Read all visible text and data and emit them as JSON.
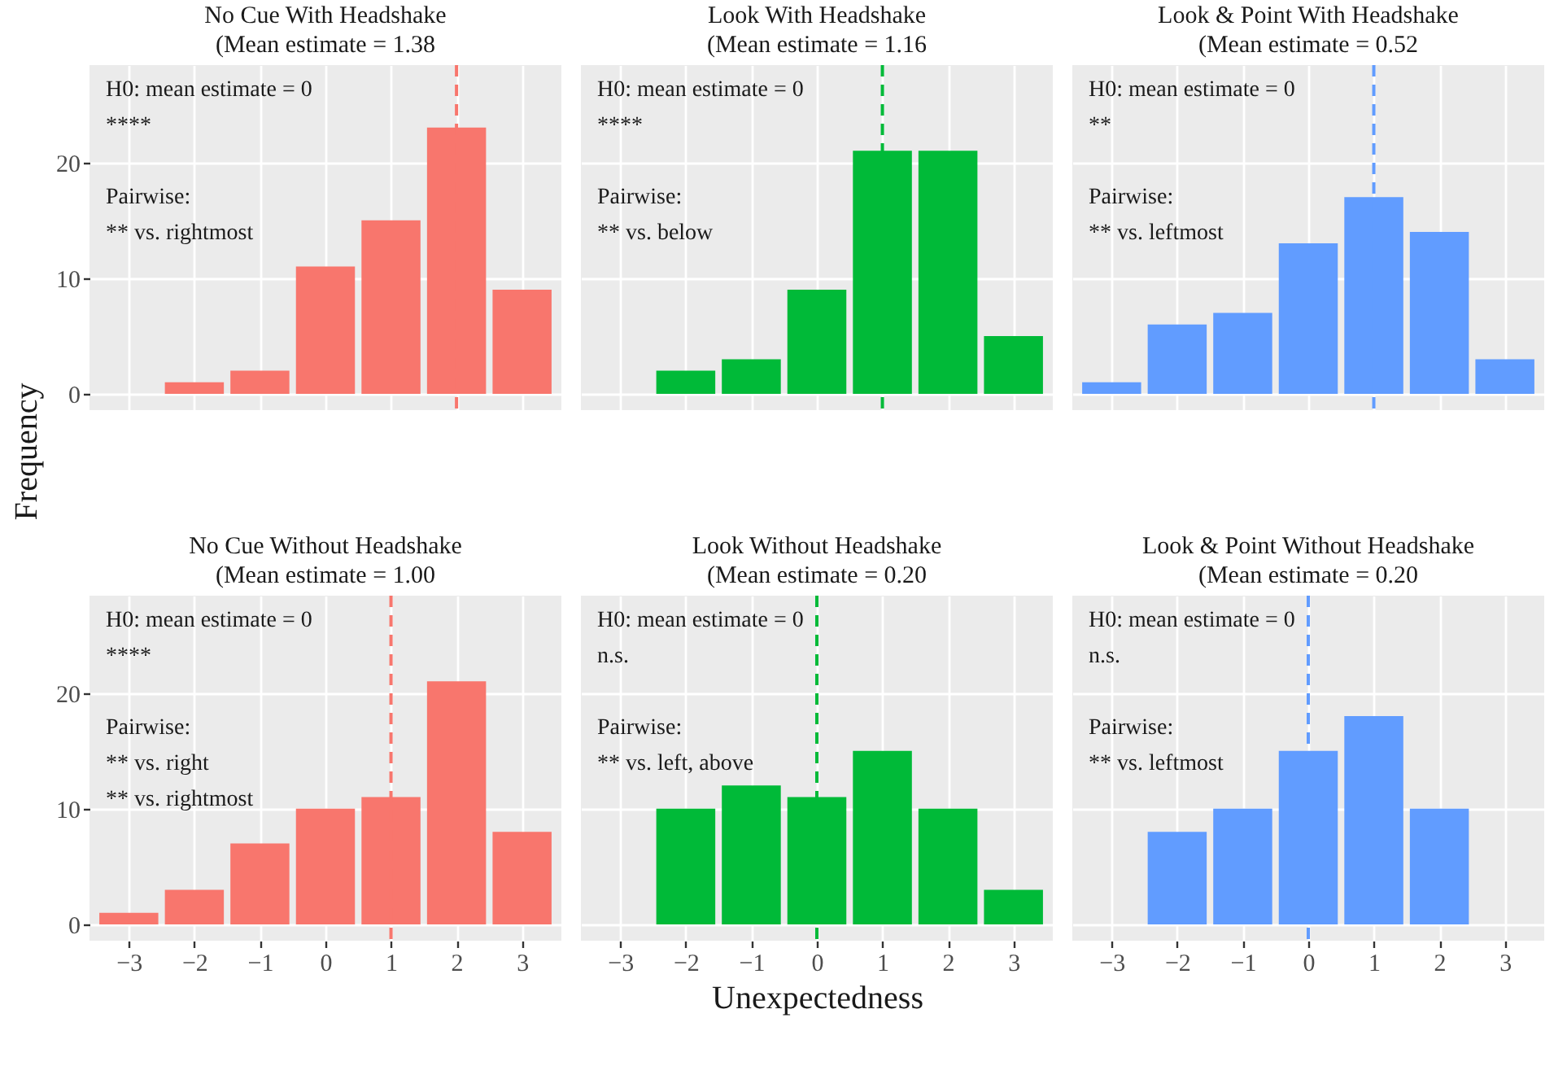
{
  "chart_data": [
    {
      "type": "bar",
      "title": "No Cue With Headshake\n(Mean estimate =  1.38",
      "x": [
        -3,
        -2,
        -1,
        0,
        1,
        2,
        3
      ],
      "values": [
        0,
        1,
        2,
        11,
        15,
        23,
        9
      ],
      "color": "#f8766d",
      "xlim": [
        -3.6,
        3.6
      ],
      "ylim": [
        -1.4,
        28.4
      ],
      "xticks": [
        -3,
        -2,
        -1,
        0,
        1,
        2,
        3
      ],
      "yticks": [
        0,
        10,
        20
      ],
      "grid": true,
      "tick_labels": "y",
      "ylabel": "Frequency",
      "annotations": [
        "H0: mean estimate = 0",
        "****",
        "Pairwise:",
        "** vs. rightmost"
      ],
      "ref_lines": [
        {
          "axis": "x",
          "value": 2,
          "color": "#f8766d",
          "line_style": "dashed"
        }
      ]
    },
    {
      "type": "bar",
      "title": "Look With Headshake\n(Mean estimate =  1.16",
      "x": [
        -3,
        -2,
        -1,
        0,
        1,
        2,
        3
      ],
      "values": [
        0,
        2,
        3,
        9,
        21,
        21,
        5
      ],
      "color": "#00ba38",
      "xlim": [
        -3.6,
        3.6
      ],
      "ylim": [
        -1.4,
        28.4
      ],
      "xticks": [
        -3,
        -2,
        -1,
        0,
        1,
        2,
        3
      ],
      "yticks": [
        0,
        10,
        20
      ],
      "grid": true,
      "tick_labels": false,
      "annotations": [
        "H0: mean estimate = 0",
        "****",
        "Pairwise:",
        "** vs. below"
      ],
      "ref_lines": [
        {
          "axis": "x",
          "value": 1,
          "color": "#00ba38",
          "line_style": "dashed"
        }
      ]
    },
    {
      "type": "bar",
      "title": "Look & Point With Headshake\n(Mean estimate =  0.52",
      "x": [
        -3,
        -2,
        -1,
        0,
        1,
        2,
        3
      ],
      "values": [
        1,
        6,
        7,
        13,
        17,
        14,
        3
      ],
      "color": "#619cff",
      "xlim": [
        -3.6,
        3.6
      ],
      "ylim": [
        -1.4,
        28.4
      ],
      "xticks": [
        -3,
        -2,
        -1,
        0,
        1,
        2,
        3
      ],
      "yticks": [
        0,
        10,
        20
      ],
      "grid": true,
      "tick_labels": false,
      "annotations": [
        "H0: mean estimate = 0",
        "**",
        "Pairwise:",
        "** vs. leftmost"
      ],
      "ref_lines": [
        {
          "axis": "x",
          "value": 1,
          "color": "#619cff",
          "line_style": "dashed"
        }
      ]
    },
    {
      "type": "bar",
      "title": "No Cue Without Headshake\n(Mean estimate =  1.00",
      "x": [
        -3,
        -2,
        -1,
        0,
        1,
        2,
        3
      ],
      "values": [
        1,
        3,
        7,
        10,
        11,
        21,
        8
      ],
      "color": "#f8766d",
      "xlim": [
        -3.6,
        3.6
      ],
      "ylim": [
        -1.4,
        28.4
      ],
      "xticks": [
        -3,
        -2,
        -1,
        0,
        1,
        2,
        3
      ],
      "yticks": [
        0,
        10,
        20
      ],
      "grid": true,
      "annotations": [
        "H0: mean estimate = 0",
        "****",
        "Pairwise:",
        "** vs. right",
        "** vs. rightmost"
      ],
      "ref_lines": [
        {
          "axis": "x",
          "value": 1,
          "color": "#f8766d",
          "line_style": "dashed"
        }
      ]
    },
    {
      "type": "bar",
      "title": "Look Without Headshake\n(Mean estimate =  0.20",
      "x": [
        -3,
        -2,
        -1,
        0,
        1,
        2,
        3
      ],
      "values": [
        0,
        10,
        12,
        11,
        15,
        10,
        3
      ],
      "color": "#00ba38",
      "xlim": [
        -3.6,
        3.6
      ],
      "ylim": [
        -1.4,
        28.4
      ],
      "xticks": [
        -3,
        -2,
        -1,
        0,
        1,
        2,
        3
      ],
      "yticks": [
        0,
        10,
        20
      ],
      "grid": true,
      "tick_labels": "x",
      "xlabel": "Unexpectedness",
      "annotations": [
        "H0: mean estimate = 0",
        "n.s.",
        "Pairwise:",
        "** vs. left, above"
      ],
      "ref_lines": [
        {
          "axis": "x",
          "value": 0,
          "color": "#00ba38",
          "line_style": "dashed"
        }
      ]
    },
    {
      "type": "bar",
      "title": "Look & Point Without Headshake\n(Mean estimate =  0.20",
      "x": [
        -3,
        -2,
        -1,
        0,
        1,
        2,
        3
      ],
      "values": [
        0,
        8,
        10,
        15,
        18,
        10,
        0
      ],
      "color": "#619cff",
      "xlim": [
        -3.6,
        3.6
      ],
      "ylim": [
        -1.4,
        28.4
      ],
      "xticks": [
        -3,
        -2,
        -1,
        0,
        1,
        2,
        3
      ],
      "yticks": [
        0,
        10,
        20
      ],
      "grid": true,
      "tick_labels": "x",
      "annotations": [
        "H0: mean estimate = 0",
        "n.s.",
        "Pairwise:",
        "** vs. leftmost"
      ],
      "ref_lines": [
        {
          "axis": "x",
          "value": 0,
          "color": "#619cff",
          "line_style": "dashed"
        }
      ]
    }
  ]
}
